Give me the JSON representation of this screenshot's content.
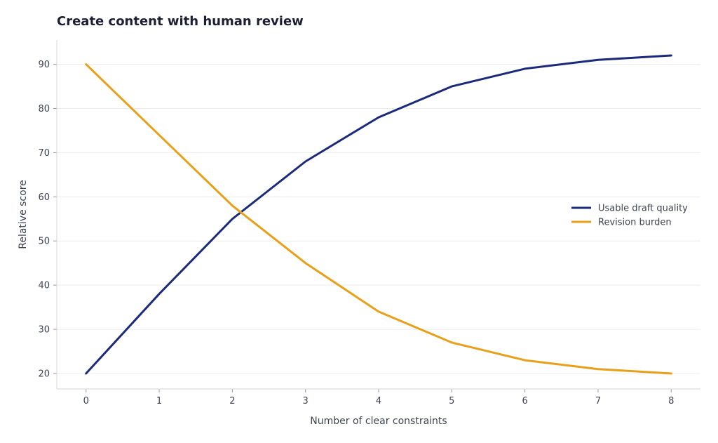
{
  "chart_data": {
    "type": "line",
    "title": "Create content with human review",
    "xlabel": "Number of clear constraints",
    "ylabel": "Relative score",
    "x": [
      0,
      1,
      2,
      3,
      4,
      5,
      6,
      7,
      8
    ],
    "xticks": [
      0,
      1,
      2,
      3,
      4,
      5,
      6,
      7,
      8
    ],
    "yticks": [
      20,
      30,
      40,
      50,
      60,
      70,
      80,
      90
    ],
    "xlim": [
      -0.4,
      8.4
    ],
    "ylim": [
      16.5,
      95.5
    ],
    "grid": true,
    "legend_position": "right",
    "series": [
      {
        "name": "Usable draft quality",
        "color": "#1c2a7a",
        "values": [
          20,
          38,
          55,
          68,
          78,
          85,
          89,
          91,
          92
        ]
      },
      {
        "name": "Revision burden",
        "color": "#e8a01a",
        "values": [
          90,
          74,
          58,
          45,
          34,
          27,
          23,
          21,
          20
        ]
      }
    ]
  }
}
